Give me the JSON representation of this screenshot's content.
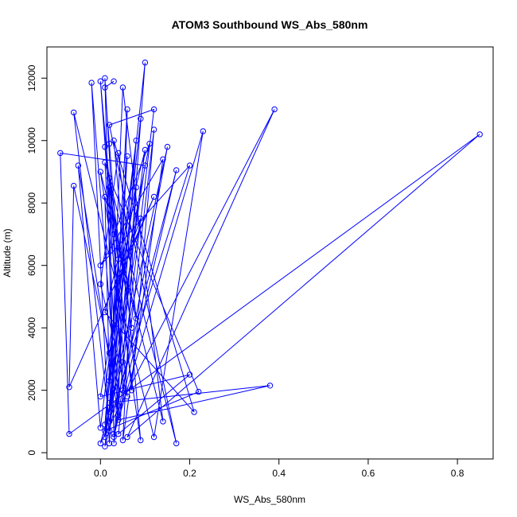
{
  "chart_data": {
    "type": "line",
    "title": "ATOM3 Southbound WS_Abs_580nm",
    "xlabel": "WS_Abs_580nm",
    "ylabel": "Altitude (m)",
    "xlim": [
      -0.12,
      0.88
    ],
    "ylim": [
      -200,
      13000
    ],
    "x_ticks": [
      0.0,
      0.2,
      0.4,
      0.6,
      0.8
    ],
    "x_tick_labels": [
      "0.0",
      "0.2",
      "0.4",
      "0.6",
      "0.8"
    ],
    "y_ticks": [
      0,
      2000,
      4000,
      6000,
      8000,
      10000,
      12000
    ],
    "y_tick_labels": [
      "0",
      "2000",
      "4000",
      "6000",
      "8000",
      "10000",
      "12000"
    ],
    "grid": false,
    "legend": "none",
    "marker": "open-circle",
    "series": [
      {
        "color": "#0000ff",
        "points": [
          [
            0.03,
            11900
          ],
          [
            0.01,
            11700
          ],
          [
            0.02,
            9900
          ],
          [
            0.04,
            6200
          ],
          [
            0.01,
            900
          ],
          [
            0.1,
            12500
          ],
          [
            0.05,
            2900
          ],
          [
            0.0,
            300
          ],
          [
            0.39,
            11000
          ],
          [
            0.06,
            500
          ],
          [
            0.85,
            10200
          ],
          [
            -0.07,
            600
          ],
          [
            -0.09,
            9600
          ],
          [
            0.1,
            9200
          ],
          [
            0.02,
            1600
          ],
          [
            0.38,
            2150
          ],
          [
            0.04,
            1050
          ],
          [
            0.23,
            10300
          ],
          [
            0.12,
            500
          ],
          [
            -0.06,
            10900
          ],
          [
            0.02,
            1000
          ],
          [
            0.2,
            9200
          ],
          [
            0.0,
            6000
          ],
          [
            0.14,
            9400
          ],
          [
            0.05,
            400
          ],
          [
            0.08,
            8500
          ],
          [
            0.0,
            1800
          ],
          [
            0.2,
            2500
          ],
          [
            0.04,
            600
          ],
          [
            0.12,
            10350
          ],
          [
            0.07,
            2000
          ],
          [
            0.02,
            8800
          ],
          [
            0.22,
            1950
          ],
          [
            0.01,
            700
          ],
          [
            0.15,
            9800
          ],
          [
            0.03,
            500
          ],
          [
            0.17,
            9050
          ],
          [
            0.01,
            200
          ],
          [
            0.09,
            10700
          ],
          [
            0.02,
            1300
          ],
          [
            0.05,
            11700
          ],
          [
            0.14,
            1000
          ],
          [
            0.0,
            9000
          ],
          [
            0.09,
            400
          ],
          [
            0.03,
            10000
          ],
          [
            0.21,
            1300
          ],
          [
            0.01,
            4500
          ],
          [
            0.1,
            9700
          ],
          [
            0.02,
            700
          ],
          [
            0.06,
            11000
          ],
          [
            0.04,
            1500
          ],
          [
            0.01,
            9300
          ],
          [
            0.17,
            300
          ],
          [
            0.02,
            10500
          ],
          [
            0.12,
            11000
          ],
          [
            0.03,
            300
          ],
          [
            0.08,
            10000
          ],
          [
            0.0,
            800
          ],
          [
            -0.05,
            9200
          ],
          [
            0.04,
            1200
          ],
          [
            -0.02,
            11850
          ],
          [
            0.02,
            300
          ],
          [
            0.06,
            9500
          ],
          [
            0.01,
            500
          ],
          [
            0.09,
            7500
          ],
          [
            0.04,
            5500
          ],
          [
            0.12,
            8200
          ],
          [
            -0.07,
            2100
          ],
          [
            -0.06,
            8550
          ],
          [
            0.02,
            3200
          ],
          [
            0.11,
            9900
          ],
          [
            0.03,
            7000
          ],
          [
            0.0,
            11900
          ],
          [
            0.05,
            2000
          ],
          [
            0.01,
            12000
          ],
          [
            0.03,
            600
          ],
          [
            0.02,
            8500
          ],
          [
            0.07,
            4000
          ],
          [
            0.01,
            9800
          ],
          [
            0.06,
            1800
          ],
          [
            0.0,
            5400
          ],
          [
            0.04,
            9600
          ],
          [
            0.08,
            4300
          ],
          [
            0.01,
            8200
          ],
          [
            0.02,
            2300
          ]
        ]
      }
    ]
  }
}
